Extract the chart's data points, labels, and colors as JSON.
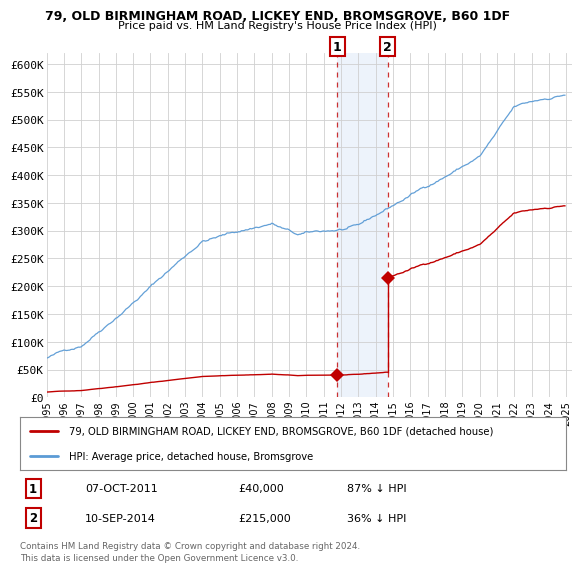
{
  "title": "79, OLD BIRMINGHAM ROAD, LICKEY END, BROMSGROVE, B60 1DF",
  "subtitle": "Price paid vs. HM Land Registry's House Price Index (HPI)",
  "ylabel_ticks": [
    "£0",
    "£50K",
    "£100K",
    "£150K",
    "£200K",
    "£250K",
    "£300K",
    "£350K",
    "£400K",
    "£450K",
    "£500K",
    "£550K",
    "£600K"
  ],
  "ytick_values": [
    0,
    50000,
    100000,
    150000,
    200000,
    250000,
    300000,
    350000,
    400000,
    450000,
    500000,
    550000,
    600000
  ],
  "ylim": [
    0,
    620000
  ],
  "hpi_color": "#5b9bd5",
  "price_color": "#c00000",
  "sale1_date": 2011.77,
  "sale1_price": 40000,
  "sale2_date": 2014.69,
  "sale2_price": 215000,
  "legend_line1": "79, OLD BIRMINGHAM ROAD, LICKEY END, BROMSGROVE, B60 1DF (detached house)",
  "legend_line2": "HPI: Average price, detached house, Bromsgrove",
  "table_row1_num": "1",
  "table_row1_date": "07-OCT-2011",
  "table_row1_price": "£40,000",
  "table_row1_hpi": "87% ↓ HPI",
  "table_row2_num": "2",
  "table_row2_date": "10-SEP-2014",
  "table_row2_price": "£215,000",
  "table_row2_hpi": "36% ↓ HPI",
  "footnote": "Contains HM Land Registry data © Crown copyright and database right 2024.\nThis data is licensed under the Open Government Licence v3.0.",
  "background_color": "#ffffff",
  "plot_bg_color": "#ffffff",
  "grid_color": "#d0d0d0",
  "shade_color": "#ccdff5"
}
